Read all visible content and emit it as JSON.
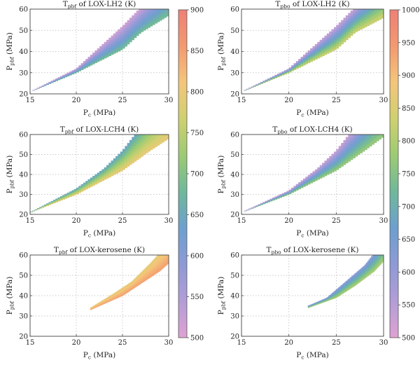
{
  "figure": {
    "pc_axis_label": "P",
    "pc_axis_sub": "c",
    "pc_axis_unit": " (MPa)",
    "ylabel_main": "P",
    "ylabel_unit": " (MPa)"
  },
  "colorbars": [
    {
      "min": 500,
      "max": 900,
      "ticks": [
        500,
        550,
        600,
        650,
        700,
        750,
        800,
        850,
        900
      ]
    },
    {
      "min": 500,
      "max": 1000,
      "ticks": [
        500,
        550,
        600,
        650,
        700,
        750,
        800,
        850,
        900,
        950,
        1000
      ]
    }
  ],
  "colormap": [
    "#dfa2d3",
    "#b39dd7",
    "#8e9ad6",
    "#6d9fcf",
    "#6fb89b",
    "#9ccb73",
    "#cfd06f",
    "#f4c67a",
    "#f39a6f",
    "#ef7f76"
  ],
  "chart_data": [
    {
      "type": "heatmap",
      "title_main": "T",
      "title_sub": "pbf",
      "title_rest": " of LOX-LH2 (K)",
      "ylabel_sub": "pbf",
      "xlim": [
        15,
        30
      ],
      "ylim": [
        20,
        60
      ],
      "xticks": [
        15,
        20,
        25,
        30
      ],
      "yticks": [
        20,
        30,
        40,
        50,
        60
      ],
      "region": {
        "x_start": 15.0,
        "low": [
          [
            15,
            21
          ],
          [
            20,
            30
          ],
          [
            25,
            41
          ],
          [
            27,
            49
          ],
          [
            30,
            57
          ]
        ],
        "high": [
          [
            15,
            21
          ],
          [
            20,
            32
          ],
          [
            22,
            40
          ],
          [
            25,
            52
          ],
          [
            27,
            61
          ]
        ]
      },
      "value_low_edge": 690,
      "value_high_edge": 510
    },
    {
      "type": "heatmap",
      "title_main": "T",
      "title_sub": "pbo",
      "title_rest": " of LOX-LH2 (K)",
      "ylabel_sub": "pbf",
      "xlim": [
        15,
        30
      ],
      "ylim": [
        20,
        60
      ],
      "xticks": [
        15,
        20,
        25,
        30
      ],
      "yticks": [
        20,
        30,
        40,
        50,
        60
      ],
      "region": {
        "x_start": 15.0,
        "low": [
          [
            15,
            21
          ],
          [
            20,
            30
          ],
          [
            25,
            41
          ],
          [
            27,
            49
          ],
          [
            30,
            56
          ]
        ],
        "high": [
          [
            15,
            21
          ],
          [
            20,
            32
          ],
          [
            22,
            40
          ],
          [
            25,
            52
          ],
          [
            27,
            61
          ]
        ]
      },
      "value_low_edge": 840,
      "value_high_edge": 520
    },
    {
      "type": "heatmap",
      "title_main": "T",
      "title_sub": "pbf",
      "title_rest": " of LOX-LCH4 (K)",
      "ylabel_sub": "pbf",
      "xlim": [
        15,
        30
      ],
      "ylim": [
        20,
        60
      ],
      "xticks": [
        15,
        20,
        25,
        30
      ],
      "yticks": [
        20,
        30,
        40,
        50,
        60
      ],
      "region": {
        "x_start": 15.0,
        "low": [
          [
            15,
            21
          ],
          [
            20,
            30
          ],
          [
            25,
            42
          ],
          [
            28,
            52
          ],
          [
            30,
            58
          ]
        ],
        "high": [
          [
            15,
            21
          ],
          [
            20,
            33
          ],
          [
            23,
            43
          ],
          [
            25,
            52
          ],
          [
            26.5,
            61
          ]
        ]
      },
      "value_low_edge": 800,
      "value_high_edge": 640
    },
    {
      "type": "heatmap",
      "title_main": "T",
      "title_sub": "pbo",
      "title_rest": " of LOX-LCH4 (K)",
      "ylabel_sub": "pbf",
      "xlim": [
        15,
        30
      ],
      "ylim": [
        20,
        60
      ],
      "xticks": [
        15,
        20,
        25,
        30
      ],
      "yticks": [
        20,
        30,
        40,
        50,
        60
      ],
      "region": {
        "x_start": 15.0,
        "low": [
          [
            15,
            21
          ],
          [
            20,
            30
          ],
          [
            25,
            42
          ],
          [
            28,
            52
          ],
          [
            30,
            59
          ]
        ],
        "high": [
          [
            15,
            21
          ],
          [
            20,
            32
          ],
          [
            23,
            43
          ],
          [
            25,
            52
          ],
          [
            26.5,
            61
          ]
        ]
      },
      "value_low_edge": 780,
      "value_high_edge": 520
    },
    {
      "type": "heatmap",
      "title_main": "T",
      "title_sub": "pbf",
      "title_rest": " of LOX-kerosene (K)",
      "ylabel_sub": "pbf",
      "xlim": [
        15,
        30
      ],
      "ylim": [
        20,
        60
      ],
      "xticks": [
        15,
        20,
        25,
        30
      ],
      "yticks": [
        20,
        30,
        40,
        50,
        60
      ],
      "region": {
        "x_start": 21.5,
        "low": [
          [
            21.5,
            33
          ],
          [
            25,
            40
          ],
          [
            27,
            46
          ],
          [
            29,
            52
          ],
          [
            30,
            56
          ]
        ],
        "high": [
          [
            21.5,
            34
          ],
          [
            24,
            41
          ],
          [
            26,
            47
          ],
          [
            28,
            56
          ],
          [
            29,
            61
          ]
        ]
      },
      "value_low_edge": 850,
      "value_high_edge": 790
    },
    {
      "type": "heatmap",
      "title_main": "T",
      "title_sub": "pbo",
      "title_rest": " of LOX-kerosene (K)",
      "ylabel_sub": "pbf",
      "xlim": [
        15,
        30
      ],
      "ylim": [
        20,
        60
      ],
      "xticks": [
        15,
        20,
        25,
        30
      ],
      "yticks": [
        20,
        30,
        40,
        50,
        60
      ],
      "region": {
        "x_start": 22.0,
        "low": [
          [
            22,
            34
          ],
          [
            25,
            39
          ],
          [
            27,
            45
          ],
          [
            29,
            52
          ],
          [
            30,
            57
          ]
        ],
        "high": [
          [
            22,
            35
          ],
          [
            24,
            39
          ],
          [
            26,
            47
          ],
          [
            28,
            55
          ],
          [
            29,
            61
          ]
        ]
      },
      "value_low_edge": 800,
      "value_high_edge": 610
    }
  ]
}
